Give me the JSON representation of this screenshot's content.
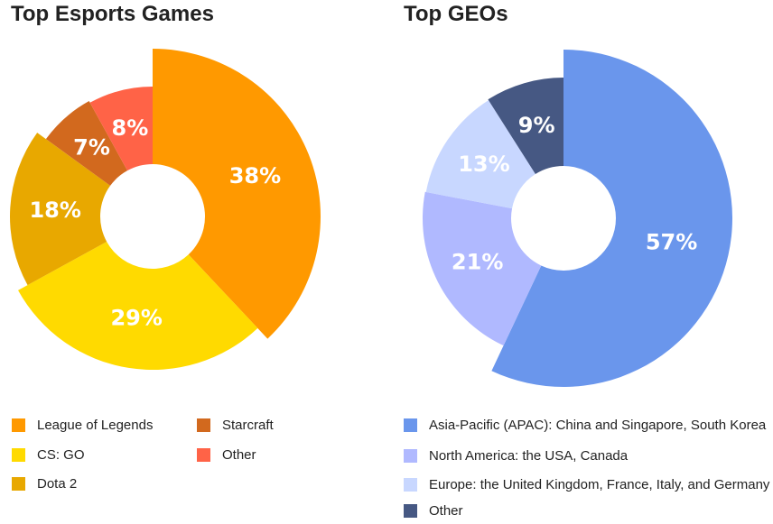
{
  "chart_data": [
    {
      "type": "pie",
      "title": "Top Esports Games",
      "slices": [
        {
          "label": "League of Legends",
          "value": 38,
          "display": "38%",
          "color": "#FF9900"
        },
        {
          "label": "CS: GO",
          "value": 29,
          "display": "29%",
          "color": "#FFDA00"
        },
        {
          "label": "Dota 2",
          "value": 18,
          "display": "18%",
          "color": "#E8A800"
        },
        {
          "label": "Starcraft",
          "value": 7,
          "display": "7%",
          "color": "#D2691E"
        },
        {
          "label": "Other",
          "value": 8,
          "display": "8%",
          "color": "#FF6347"
        }
      ]
    },
    {
      "type": "pie",
      "title": "Top GEOs",
      "slices": [
        {
          "label": "Asia-Pacific (APAC): China and Singapore, South Korea",
          "value": 57,
          "display": "57%",
          "color": "#6A96EC"
        },
        {
          "label": "North America: the USA, Canada",
          "value": 21,
          "display": "21%",
          "color": "#B0B9FF"
        },
        {
          "label": "Europe: the United Kingdom, France, Italy, and Germany",
          "value": 13,
          "display": "13%",
          "color": "#C8D7FF"
        },
        {
          "label": "Other",
          "value": 9,
          "display": "9%",
          "color": "#465883"
        }
      ]
    }
  ]
}
